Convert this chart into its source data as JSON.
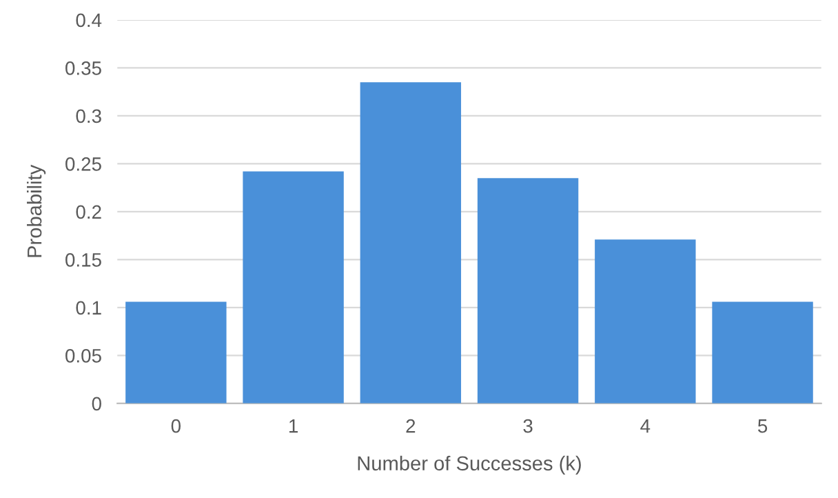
{
  "chart_data": {
    "type": "bar",
    "xlabel": "Number of Successes (k)",
    "ylabel": "Probability",
    "categories": [
      "0",
      "1",
      "2",
      "3",
      "4",
      "5"
    ],
    "values": [
      0.106,
      0.242,
      0.335,
      0.235,
      0.171,
      0.106
    ],
    "color": "#4a90d9",
    "ylim": [
      0,
      0.4
    ],
    "yticks": [
      0,
      0.05,
      0.1,
      0.15,
      0.2,
      0.25,
      0.3,
      0.35,
      0.4
    ],
    "grid": "y",
    "legend": false
  }
}
